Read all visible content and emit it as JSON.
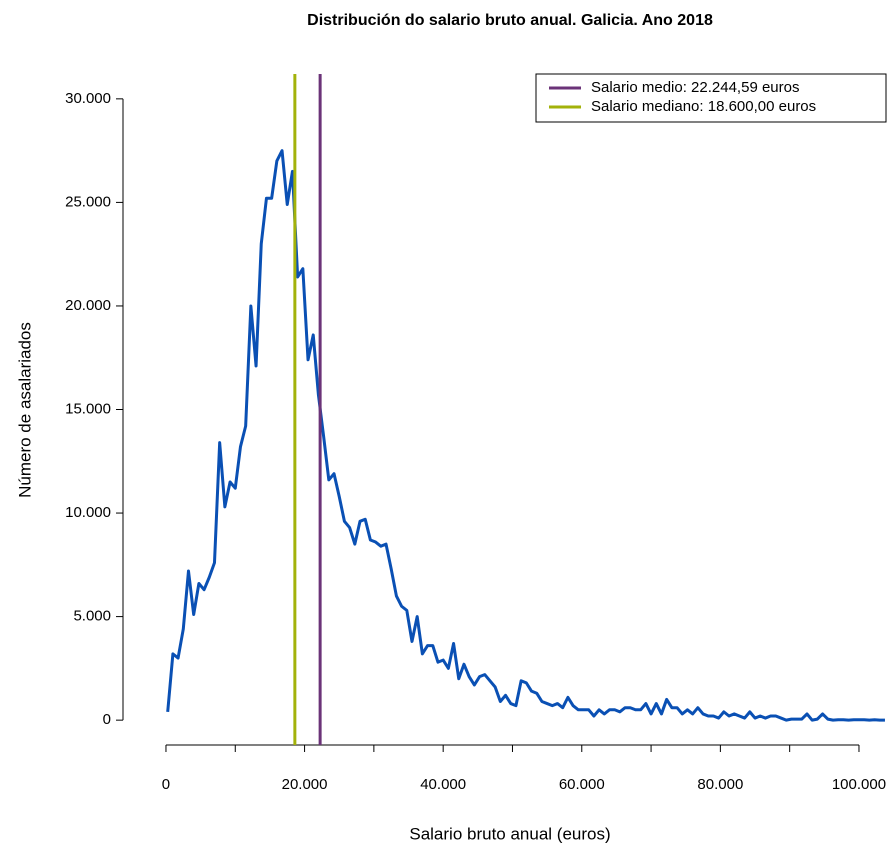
{
  "chart_data": {
    "type": "line",
    "title": "Distribución do salario bruto anual. Galicia. Ano 2018",
    "x_label": "Salario bruto anual (euros)",
    "y_label": "Número de asalariados",
    "x": [
      250,
      1000,
      1750,
      2500,
      3250,
      4000,
      4750,
      5500,
      6250,
      7000,
      7750,
      8500,
      9250,
      10000,
      10750,
      11500,
      12250,
      13000,
      13750,
      14500,
      15250,
      16000,
      16750,
      17500,
      18250,
      19000,
      19750,
      20500,
      21250,
      22000,
      22750,
      23500,
      24250,
      25000,
      25750,
      26500,
      27250,
      28000,
      28750,
      29500,
      30250,
      31000,
      31750,
      32500,
      33250,
      34000,
      34750,
      35500,
      36250,
      37000,
      37750,
      38500,
      39250,
      40000,
      40750,
      41500,
      42250,
      43000,
      43750,
      44500,
      45250,
      46000,
      46750,
      47500,
      48250,
      49000,
      49750,
      50500,
      51250,
      52000,
      52750,
      53500,
      54250,
      55000,
      55750,
      56500,
      57250,
      58000,
      58750,
      59500,
      60250,
      61000,
      61750,
      62500,
      63250,
      64000,
      64750,
      65500,
      66250,
      67000,
      67750,
      68500,
      69250,
      70000,
      70750,
      71500,
      72250,
      73000,
      73750,
      74500,
      75250,
      76000,
      76750,
      77500,
      78250,
      79000,
      79750,
      80500,
      81250,
      82000,
      82750,
      83500,
      84250,
      85000,
      85750,
      86500,
      87250,
      88000,
      88750,
      89500,
      90250,
      91000,
      91750,
      92500,
      93250,
      94000,
      94750,
      95500,
      96250,
      97000,
      97750,
      98500,
      99250,
      100000,
      100750,
      101500,
      102250,
      103000,
      103750
    ],
    "series": [
      {
        "name": "asalariados",
        "color": "#0a50b4",
        "values": [
          400,
          3200,
          3000,
          4400,
          7200,
          5100,
          6600,
          6300,
          6900,
          7600,
          13400,
          10300,
          11500,
          11200,
          13200,
          14200,
          20000,
          17100,
          23000,
          25200,
          25200,
          27000,
          27500,
          24900,
          26500,
          21400,
          21800,
          17400,
          18600,
          15700,
          13700,
          11600,
          11900,
          10800,
          9600,
          9300,
          8500,
          9600,
          9700,
          8700,
          8600,
          8400,
          8500,
          7300,
          6000,
          5500,
          5300,
          3800,
          5000,
          3200,
          3600,
          3600,
          2800,
          2900,
          2500,
          3700,
          2000,
          2700,
          2100,
          1700,
          2100,
          2200,
          1900,
          1600,
          900,
          1200,
          800,
          700,
          1900,
          1800,
          1400,
          1300,
          900,
          800,
          700,
          800,
          600,
          1100,
          700,
          500,
          500,
          500,
          200,
          500,
          300,
          500,
          500,
          400,
          600,
          600,
          500,
          500,
          800,
          300,
          800,
          300,
          1000,
          600,
          600,
          300,
          500,
          300,
          600,
          300,
          200,
          200,
          100,
          400,
          200,
          300,
          200,
          100,
          400,
          100,
          200,
          100,
          200,
          200,
          100,
          0,
          50,
          50,
          50,
          300,
          0,
          50,
          300,
          50,
          0,
          20,
          20,
          0,
          20,
          20,
          20,
          0,
          20,
          0,
          0
        ]
      }
    ],
    "vlines": [
      {
        "value": 22244.59,
        "label": "Salario medio: 22.244,59 euros",
        "color": "#6b3378"
      },
      {
        "value": 18600,
        "label": "Salario mediano: 18.600,00 euros",
        "color": "#a3b20a"
      }
    ],
    "xlim": [
      -6200,
      103900
    ],
    "ylim": [
      -1200,
      31200
    ],
    "xticks": [
      0,
      {
        "value": 20000,
        "label": "20.000"
      },
      {
        "value": 40000,
        "label": "40.000"
      },
      {
        "value": 60000,
        "label": "60.000"
      },
      {
        "value": 80000,
        "label": "80.000"
      },
      {
        "value": 100000,
        "label": "100.000"
      }
    ],
    "xminor_ticks": [
      10000,
      30000,
      50000,
      70000,
      90000
    ],
    "yticks": [
      0,
      {
        "value": 5000,
        "label": "5.000"
      },
      {
        "value": 10000,
        "label": "10.000"
      },
      {
        "value": 15000,
        "label": "15.000"
      },
      {
        "value": 20000,
        "label": "20.000"
      },
      {
        "value": 25000,
        "label": "25.000"
      },
      {
        "value": 30000,
        "label": "30.000"
      }
    ],
    "legend": "top-right"
  }
}
